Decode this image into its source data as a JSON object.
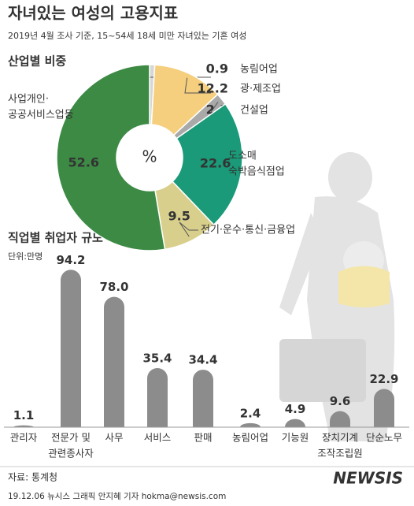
{
  "title": "자녀있는 여성의 고용지표",
  "subtitle": "2019년 4월 조사 기준, 15~54세 18세 미만 자녀있는 기혼 여성",
  "chart_data": [
    {
      "type": "pie",
      "title": "산업별 비중",
      "center_label": "%",
      "categories": [
        [
          "농림어업"
        ],
        [
          "광·제조업"
        ],
        [
          "건설업"
        ],
        [
          "도소매",
          "숙박음식점업"
        ],
        [
          "전기·운수·통신·금융업"
        ],
        [
          "사업개인·",
          "공공서비스업등"
        ]
      ],
      "values": [
        0.9,
        12.2,
        2.1,
        22.6,
        9.5,
        52.6
      ],
      "colors": [
        "#d6d6d6",
        "#f5cf7e",
        "#a9a9a9",
        "#1a9a78",
        "#d8cf8c",
        "#3d8a45"
      ]
    },
    {
      "type": "bar",
      "title": "직업별 취업자 규모",
      "unit": "단위:만명",
      "categories": [
        [
          "관리자"
        ],
        [
          "전문가 및",
          "관련종사자"
        ],
        [
          "사무"
        ],
        [
          "서비스"
        ],
        [
          "판매"
        ],
        [
          "농림어업"
        ],
        [
          "기능원"
        ],
        [
          "장치기계",
          "조작조립원"
        ],
        [
          "단순노무"
        ]
      ],
      "values": [
        1.1,
        94.2,
        78.0,
        35.4,
        34.4,
        2.4,
        4.9,
        9.6,
        22.9
      ],
      "value_labels": [
        "1.1",
        "94.2",
        "78.0",
        "35.4",
        "34.4",
        "2.4",
        "4.9",
        "9.6",
        "22.9"
      ],
      "color": "#8c8c8c"
    }
  ],
  "source": "자료: 통계청",
  "credit": "19.12.06 뉴시스 그래픽 안지혜 기자 hokma@newsis.com",
  "watermark": "NEWSIS"
}
